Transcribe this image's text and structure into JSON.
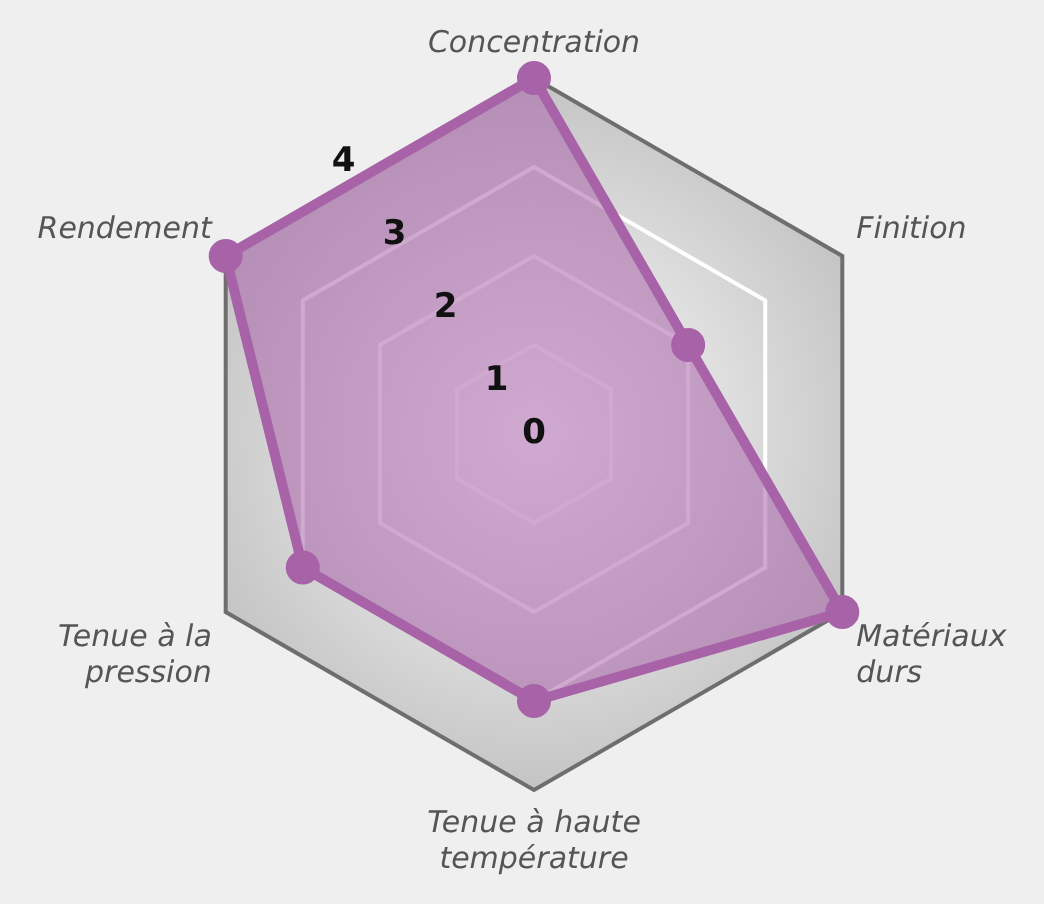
{
  "chart_data": {
    "type": "radar",
    "categories": [
      "Concentration",
      "Finition",
      "Matériaux durs",
      "Tenue à haute température",
      "Tenue à la pression",
      "Rendement"
    ],
    "series": [
      {
        "color": "#a862a8",
        "values": [
          4,
          2,
          4,
          3,
          3,
          4
        ]
      }
    ],
    "ylim": [
      0,
      4
    ],
    "yticks": [
      0,
      1,
      2,
      3,
      4
    ],
    "legend": false,
    "marker": "circle"
  }
}
